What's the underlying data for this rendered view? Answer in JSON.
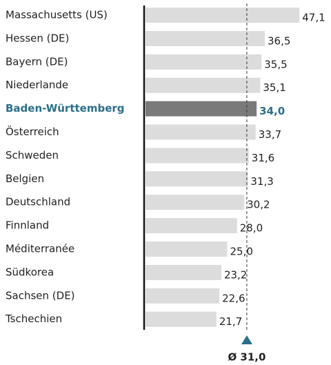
{
  "chart_data": {
    "type": "barh",
    "categories": [
      "Massachusetts (US)",
      "Hessen (DE)",
      "Bayern (DE)",
      "Niederlande",
      "Baden-Württemberg",
      "Österreich",
      "Schweden",
      "Belgien",
      "Deutschland",
      "Finnland",
      "Méditerranée",
      "Südkorea",
      "Sachsen (DE)",
      "Tschechien"
    ],
    "values": [
      47.1,
      36.5,
      35.5,
      35.1,
      34.0,
      33.7,
      31.6,
      31.3,
      30.2,
      28.0,
      25.0,
      23.2,
      22.6,
      21.7
    ],
    "value_labels": [
      "47,1",
      "36,5",
      "35,5",
      "35,1",
      "34,0",
      "33,7",
      "31,6",
      "31,3",
      "30,2",
      "28,0",
      "25,0",
      "23,2",
      "22,6",
      "21,7"
    ],
    "color": "#dcdcdc",
    "highlight": {
      "index": 4,
      "color": "#7a7a7a",
      "label_color": "#2a6f8a"
    },
    "xlim": [
      0,
      50
    ],
    "reference_line": {
      "value": 31.0,
      "label": "Ø 31,0",
      "color": "#2a6f8a"
    }
  }
}
